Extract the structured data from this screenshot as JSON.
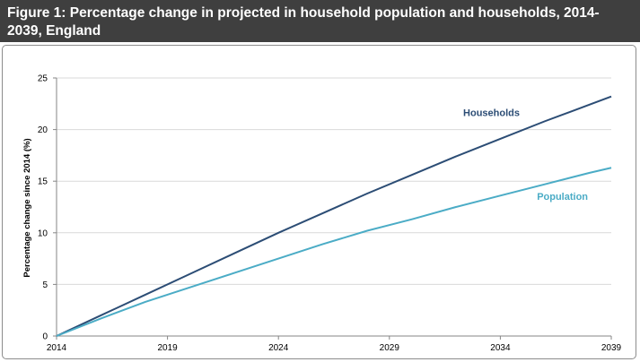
{
  "figure": {
    "title": "Figure 1: Percentage change in projected in household population and households, 2014-2039, England"
  },
  "chart_data": {
    "type": "line",
    "title": "Figure 1: Percentage change in projected in household population and households, 2014-2039, England",
    "xlabel": "",
    "ylabel": "Percentage change since 2014 (%)",
    "x_ticks": [
      2014,
      2019,
      2024,
      2029,
      2034,
      2039
    ],
    "y_ticks": [
      0,
      5,
      10,
      15,
      20,
      25
    ],
    "xlim": [
      2014,
      2039
    ],
    "ylim": [
      0,
      25
    ],
    "grid": "horizontal",
    "legend": "inline labels",
    "series": [
      {
        "name": "Households",
        "color": "#2c4d75",
        "x": [
          2014,
          2016,
          2018,
          2020,
          2022,
          2024,
          2026,
          2028,
          2030,
          2032,
          2034,
          2036,
          2038,
          2039
        ],
        "values": [
          0,
          2.0,
          4.0,
          6.0,
          8.0,
          10.0,
          11.9,
          13.8,
          15.6,
          17.4,
          19.1,
          20.8,
          22.4,
          23.2
        ]
      },
      {
        "name": "Population",
        "color": "#4bacc6",
        "x": [
          2014,
          2016,
          2018,
          2020,
          2022,
          2024,
          2026,
          2028,
          2030,
          2032,
          2034,
          2036,
          2038,
          2039
        ],
        "values": [
          0,
          1.7,
          3.3,
          4.7,
          6.1,
          7.5,
          8.9,
          10.2,
          11.3,
          12.5,
          13.6,
          14.7,
          15.8,
          16.3
        ]
      }
    ]
  }
}
